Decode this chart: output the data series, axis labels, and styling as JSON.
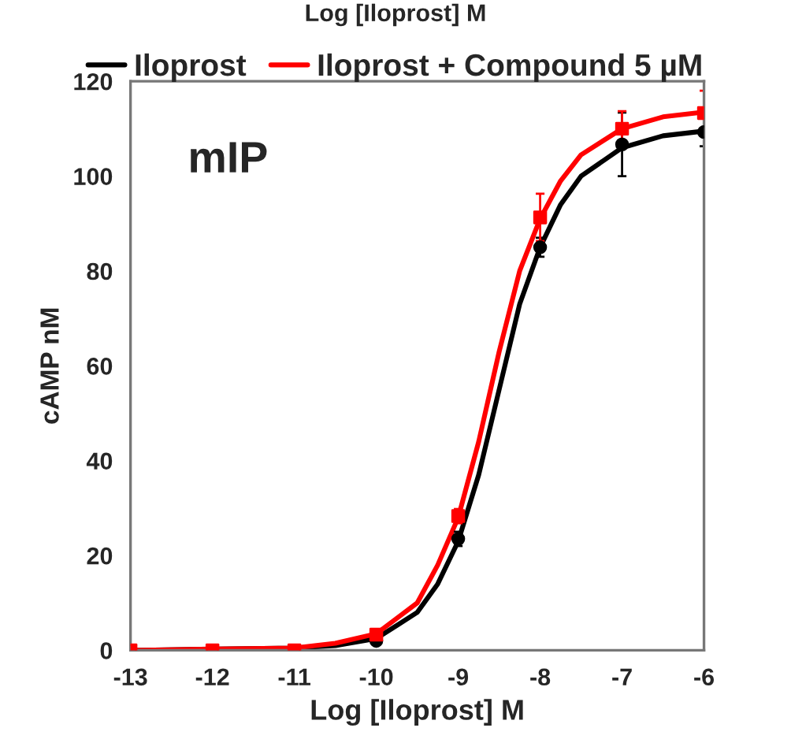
{
  "chart_data": {
    "type": "line",
    "xlabel": "Log [Iloprost] M",
    "ylabel": "cAMP nM",
    "annotations": [
      "Log [Iloprost] M",
      "mIP"
    ],
    "xlim": [
      -13,
      -6
    ],
    "xticks": [
      -13,
      -12,
      -11,
      -10,
      -9,
      -8,
      -7,
      -6
    ],
    "ylim": [
      0,
      120
    ],
    "yticks": [
      0,
      20,
      40,
      60,
      80,
      100,
      120
    ],
    "grid": false,
    "legend": "top",
    "series": [
      {
        "name": "Iloprost",
        "marker": "none",
        "color": "#000000",
        "x": [
          -13,
          -11,
          -10.5,
          -10,
          -9.5,
          -9.25,
          -9,
          -8.75,
          -8.5,
          -8.25,
          -8,
          -7.75,
          -7.5,
          -7,
          -6.5,
          -6
        ],
        "values": [
          0,
          0.5,
          1,
          2.5,
          8,
          14,
          23,
          37,
          55,
          73,
          85,
          94,
          100,
          106,
          108.5,
          109.5
        ]
      },
      {
        "name": "Iloprost + Compound 5 µM",
        "marker": "none",
        "color": "#ff0000",
        "x": [
          -13,
          -11,
          -10.5,
          -10,
          -9.5,
          -9.25,
          -9,
          -8.75,
          -8.5,
          -8.25,
          -8,
          -7.75,
          -7.5,
          -7,
          -6.5,
          -6
        ],
        "values": [
          0,
          0.5,
          1.5,
          3.5,
          10,
          18,
          28,
          44,
          63,
          80,
          91,
          99,
          104.5,
          110,
          112.5,
          113.5
        ]
      },
      {
        "type": "scatter",
        "marker": "circle",
        "color": "#000000",
        "x": [
          -10,
          -9,
          -8,
          -7,
          -6
        ],
        "values": [
          2,
          23.5,
          85,
          106.7,
          109.3
        ],
        "errors": [
          null,
          1.5,
          2,
          6.7,
          3
        ]
      },
      {
        "type": "scatter",
        "marker": "square",
        "color": "#ff0000",
        "x": [
          -13,
          -12,
          -11,
          -10,
          -9,
          -8,
          -7,
          -6
        ],
        "values": [
          0,
          0,
          0,
          3.3,
          28.3,
          91.3,
          110,
          113.3
        ],
        "errors": [
          null,
          null,
          null,
          null,
          1.5,
          5,
          3.7,
          4.7
        ]
      }
    ]
  }
}
